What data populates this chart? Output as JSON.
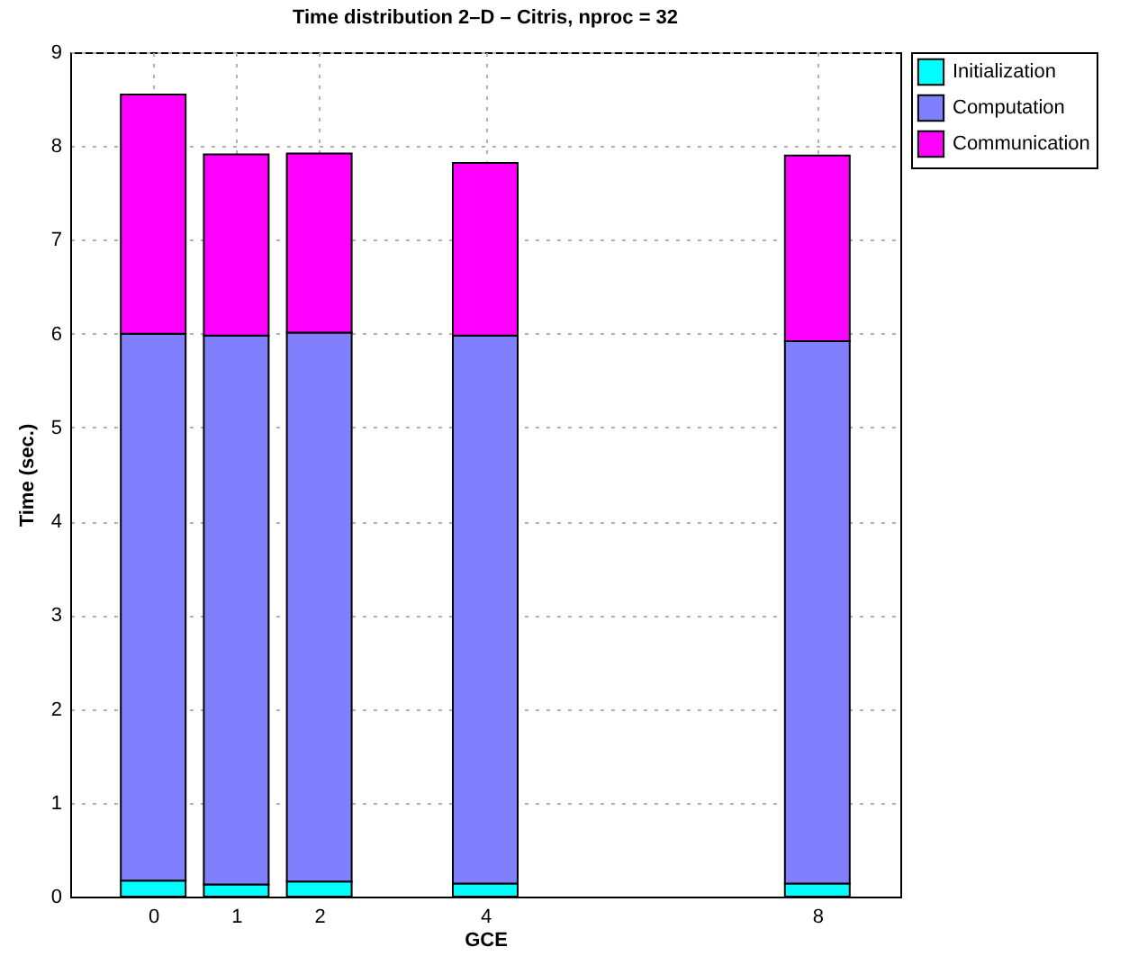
{
  "chart_data": {
    "type": "bar",
    "title": "Time distribution 2–D – Citris, nproc = 32",
    "xlabel": "GCE",
    "ylabel": "Time (sec.)",
    "x": [
      0,
      1,
      2,
      4,
      8
    ],
    "series": [
      {
        "name": "Initialization",
        "color": "#00ffff",
        "values": [
          0.17,
          0.13,
          0.16,
          0.14,
          0.14
        ]
      },
      {
        "name": "Computation",
        "color": "#8080ff",
        "values": [
          5.83,
          5.85,
          5.85,
          5.84,
          5.78
        ]
      },
      {
        "name": "Communication",
        "color": "#ff00ff",
        "values": [
          2.55,
          1.93,
          1.91,
          1.84,
          1.98
        ]
      }
    ],
    "stacked": true,
    "xlim": [
      -1,
      9
    ],
    "xticks": [
      0,
      1,
      2,
      4,
      8
    ],
    "ylim": [
      0,
      9
    ],
    "yticks": [
      0,
      1,
      2,
      3,
      4,
      5,
      6,
      7,
      8,
      9
    ],
    "grid": true,
    "legend": "top right"
  }
}
